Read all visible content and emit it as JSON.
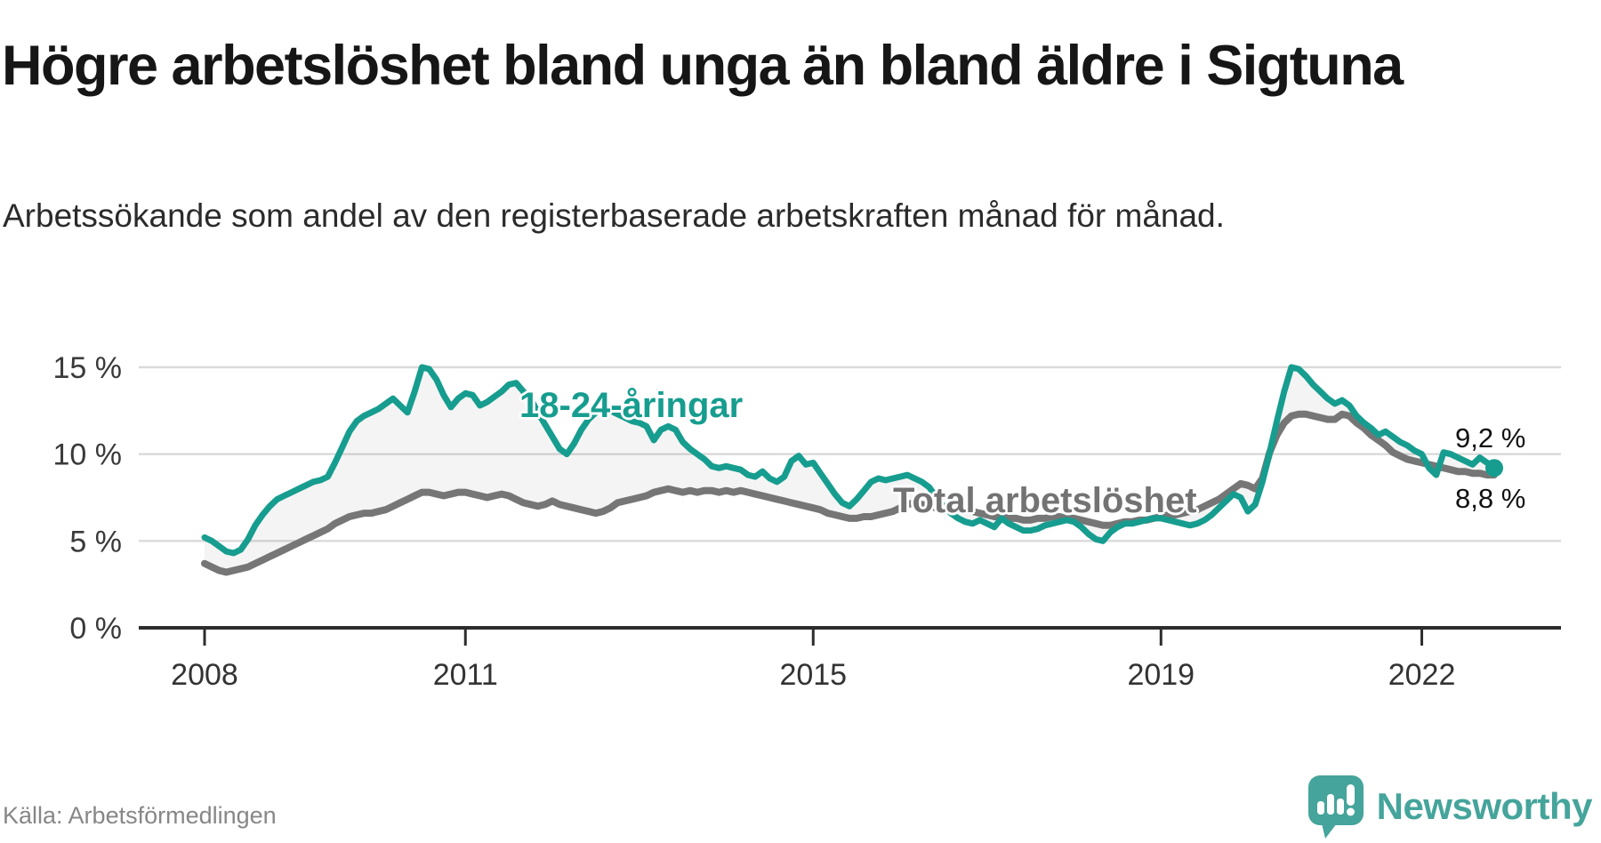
{
  "header": {
    "title": "Högre arbetslöshet bland unga än bland äldre i Sigtuna",
    "subtitle": "Arbetssökande som andel av den registerbaserade arbetskraften månad för månad."
  },
  "chart_data": {
    "type": "line",
    "unit": "%",
    "frequency": "monthly",
    "x_start": "2008-01",
    "x_end": "2022-11",
    "ylim": [
      0,
      15
    ],
    "grid": "horizontal",
    "yticks": [
      {
        "value": 0,
        "label": "0 %"
      },
      {
        "value": 5,
        "label": "5 %"
      },
      {
        "value": 10,
        "label": "10 %"
      },
      {
        "value": 15,
        "label": "15 %"
      }
    ],
    "xticks": [
      {
        "year": 2008,
        "label": "2008"
      },
      {
        "year": 2011,
        "label": "2011"
      },
      {
        "year": 2015,
        "label": "2015"
      },
      {
        "year": 2019,
        "label": "2019"
      },
      {
        "year": 2022,
        "label": "2022"
      }
    ],
    "band_fill_note": "light gray area between the two lines",
    "series": [
      {
        "name": "Total arbetslöshet",
        "color": "#767676",
        "end_value_label": "8,8 %",
        "values": [
          3.7,
          3.5,
          3.3,
          3.2,
          3.3,
          3.4,
          3.5,
          3.7,
          3.9,
          4.1,
          4.3,
          4.5,
          4.7,
          4.9,
          5.1,
          5.3,
          5.5,
          5.7,
          6.0,
          6.2,
          6.4,
          6.5,
          6.6,
          6.6,
          6.7,
          6.8,
          7.0,
          7.2,
          7.4,
          7.6,
          7.8,
          7.8,
          7.7,
          7.6,
          7.7,
          7.8,
          7.8,
          7.7,
          7.6,
          7.5,
          7.6,
          7.7,
          7.6,
          7.4,
          7.2,
          7.1,
          7.0,
          7.1,
          7.3,
          7.1,
          7.0,
          6.9,
          6.8,
          6.7,
          6.6,
          6.7,
          6.9,
          7.2,
          7.3,
          7.4,
          7.5,
          7.6,
          7.8,
          7.9,
          8.0,
          7.9,
          7.8,
          7.9,
          7.8,
          7.9,
          7.9,
          7.8,
          7.9,
          7.8,
          7.9,
          7.8,
          7.7,
          7.6,
          7.5,
          7.4,
          7.3,
          7.2,
          7.1,
          7.0,
          6.9,
          6.8,
          6.6,
          6.5,
          6.4,
          6.3,
          6.3,
          6.4,
          6.4,
          6.5,
          6.6,
          6.7,
          6.9,
          7.1,
          7.2,
          7.1,
          7.0,
          6.9,
          6.9,
          7.0,
          6.9,
          6.8,
          6.7,
          6.6,
          6.5,
          6.4,
          6.4,
          6.3,
          6.3,
          6.2,
          6.2,
          6.3,
          6.3,
          6.4,
          6.4,
          6.3,
          6.3,
          6.2,
          6.1,
          6.0,
          5.9,
          5.9,
          6.0,
          6.1,
          6.1,
          6.2,
          6.2,
          6.3,
          6.4,
          6.5,
          6.5,
          6.6,
          6.7,
          6.8,
          7.0,
          7.2,
          7.4,
          7.7,
          8.0,
          8.3,
          8.2,
          8.0,
          8.6,
          10.1,
          11.1,
          11.8,
          12.2,
          12.3,
          12.3,
          12.2,
          12.1,
          12.0,
          12.0,
          12.3,
          12.2,
          11.8,
          11.5,
          11.1,
          10.8,
          10.5,
          10.1,
          9.9,
          9.7,
          9.6,
          9.5,
          9.4,
          9.3,
          9.2,
          9.1,
          9.0,
          9.0,
          8.9,
          8.9,
          8.8,
          8.8
        ]
      },
      {
        "name": "18-24-åringar",
        "color": "#169d8f",
        "end_value_label": "9,2 %",
        "values": [
          5.2,
          5.0,
          4.7,
          4.4,
          4.3,
          4.5,
          5.1,
          5.9,
          6.5,
          7.0,
          7.4,
          7.6,
          7.8,
          8.0,
          8.2,
          8.4,
          8.5,
          8.7,
          9.5,
          10.4,
          11.3,
          11.9,
          12.2,
          12.4,
          12.6,
          12.9,
          13.2,
          12.8,
          12.4,
          13.6,
          15.0,
          14.9,
          14.3,
          13.4,
          12.7,
          13.2,
          13.5,
          13.4,
          12.8,
          13.0,
          13.3,
          13.6,
          14.0,
          14.1,
          13.6,
          13.2,
          12.4,
          11.7,
          11.0,
          10.3,
          10.0,
          10.6,
          11.4,
          12.0,
          12.4,
          12.6,
          12.5,
          12.3,
          12.1,
          11.9,
          11.8,
          11.6,
          10.8,
          11.4,
          11.6,
          11.4,
          10.7,
          10.3,
          10.0,
          9.7,
          9.3,
          9.2,
          9.3,
          9.2,
          9.1,
          8.8,
          8.7,
          9.0,
          8.6,
          8.4,
          8.7,
          9.6,
          9.9,
          9.4,
          9.5,
          8.9,
          8.3,
          7.7,
          7.2,
          7.0,
          7.4,
          7.9,
          8.4,
          8.6,
          8.5,
          8.6,
          8.7,
          8.8,
          8.6,
          8.4,
          8.1,
          7.5,
          7.0,
          6.6,
          6.3,
          6.1,
          6.0,
          6.2,
          6.0,
          5.8,
          6.3,
          6.0,
          5.8,
          5.6,
          5.6,
          5.7,
          5.9,
          6.0,
          6.1,
          6.2,
          6.1,
          5.8,
          5.4,
          5.1,
          5.0,
          5.5,
          5.8,
          6.0,
          6.0,
          6.1,
          6.2,
          6.3,
          6.3,
          6.2,
          6.1,
          6.0,
          5.9,
          6.0,
          6.2,
          6.5,
          6.9,
          7.3,
          7.7,
          7.5,
          6.7,
          7.1,
          8.4,
          10.1,
          11.9,
          13.6,
          15.0,
          14.9,
          14.5,
          14.0,
          13.6,
          13.2,
          12.9,
          13.1,
          12.8,
          12.2,
          11.8,
          11.5,
          11.1,
          11.3,
          11.0,
          10.7,
          10.5,
          10.2,
          10.0,
          9.2,
          8.8,
          10.1,
          10.0,
          9.8,
          9.6,
          9.4,
          9.8,
          9.5,
          9.2
        ]
      }
    ],
    "annotations": {
      "young_label": "18-24-åringar",
      "total_label": "Total arbetslöshet",
      "young_end_value": "9,2 %",
      "total_end_value": "8,8 %"
    }
  },
  "footer": {
    "source": "Källa: Arbetsförmedlingen",
    "brand": "Newsworthy"
  },
  "colors": {
    "young_line": "#169d8f",
    "total_line": "#767676",
    "band_fill": "rgba(110,110,110,0.08)",
    "gridline": "#d9d9d9",
    "axis": "#2d2d2d",
    "brand_teal": "#45a49b"
  }
}
